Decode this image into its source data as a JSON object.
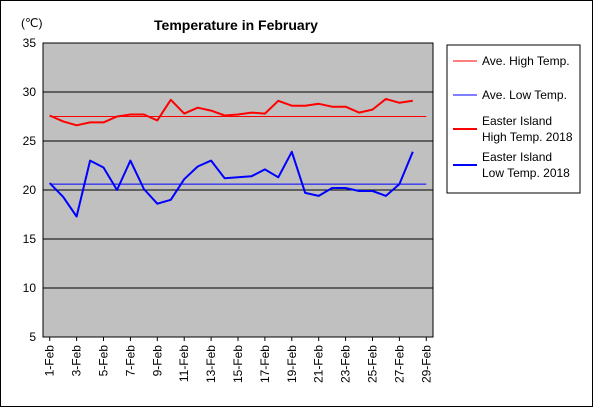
{
  "chart_data": {
    "type": "line",
    "title": "Temperature in February",
    "unit_label": "(℃)",
    "ylim": [
      5,
      35
    ],
    "yticks": [
      5,
      10,
      15,
      20,
      25,
      30,
      35
    ],
    "x_days": [
      1,
      2,
      3,
      4,
      5,
      6,
      7,
      8,
      9,
      10,
      11,
      12,
      13,
      14,
      15,
      16,
      17,
      18,
      19,
      20,
      21,
      22,
      23,
      24,
      25,
      26,
      27,
      28,
      29
    ],
    "x_tick_labels": [
      "1-Feb",
      "3-Feb",
      "5-Feb",
      "7-Feb",
      "9-Feb",
      "11-Feb",
      "13-Feb",
      "15-Feb",
      "17-Feb",
      "19-Feb",
      "21-Feb",
      "23-Feb",
      "25-Feb",
      "27-Feb",
      "29-Feb"
    ],
    "grid": "horizontal",
    "legend_position": "right",
    "colors": {
      "plot_background": "#c0c0c0",
      "high": "#ff0000",
      "low": "#0000ff"
    },
    "series": [
      {
        "name": "Ave. High Temp.",
        "color": "#ff0000",
        "width": 1,
        "x": [
          1,
          29
        ],
        "values": [
          27.5,
          27.5
        ]
      },
      {
        "name": "Ave. Low Temp.",
        "color": "#0000ff",
        "width": 1,
        "x": [
          1,
          29
        ],
        "values": [
          20.6,
          20.6
        ]
      },
      {
        "name": "Easter Island High Temp. 2018",
        "legend_lines": [
          "Easter Island",
          "High Temp. 2018"
        ],
        "color": "#ff0000",
        "width": 2,
        "x": [
          1,
          2,
          3,
          4,
          5,
          6,
          7,
          8,
          9,
          10,
          11,
          12,
          13,
          14,
          15,
          16,
          17,
          18,
          19,
          20,
          21,
          22,
          23,
          24,
          25,
          26,
          27,
          28
        ],
        "values": [
          27.6,
          27.0,
          26.6,
          26.9,
          26.9,
          27.5,
          27.7,
          27.7,
          27.1,
          29.2,
          27.8,
          28.4,
          28.1,
          27.6,
          27.7,
          27.9,
          27.8,
          29.1,
          28.6,
          28.6,
          28.8,
          28.5,
          28.5,
          27.9,
          28.2,
          29.3,
          28.9,
          29.1
        ]
      },
      {
        "name": "Easter Island Low Temp. 2018",
        "legend_lines": [
          "Easter Island",
          "Low Temp. 2018"
        ],
        "color": "#0000ff",
        "width": 2,
        "x": [
          1,
          2,
          3,
          4,
          5,
          6,
          7,
          8,
          9,
          10,
          11,
          12,
          13,
          14,
          15,
          16,
          17,
          18,
          19,
          20,
          21,
          22,
          23,
          24,
          25,
          26,
          27,
          28
        ],
        "values": [
          20.7,
          19.3,
          17.3,
          23.0,
          22.3,
          20.0,
          23.0,
          20.1,
          18.6,
          19.0,
          21.1,
          22.4,
          23.0,
          21.2,
          21.3,
          21.4,
          22.1,
          21.3,
          23.9,
          19.7,
          19.4,
          20.2,
          20.2,
          19.9,
          19.9,
          19.4,
          20.6,
          23.9
        ]
      }
    ]
  }
}
